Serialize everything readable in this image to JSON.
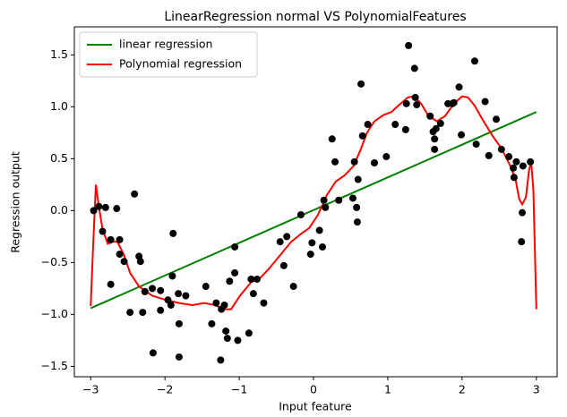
{
  "chart_data": {
    "type": "scatter",
    "title": "LinearRegression normal VS PolynomialFeatures",
    "x_label": "Input feature",
    "y_label": "Regression output",
    "xlim": [
      -3.22,
      3.28
    ],
    "ylim": [
      -1.6,
      1.77
    ],
    "xticks": [
      {
        "value": -3,
        "label": "−3"
      },
      {
        "value": -2,
        "label": "−2"
      },
      {
        "value": -1,
        "label": "−1"
      },
      0,
      1,
      2,
      3
    ],
    "yticks": [
      {
        "value": -1.5,
        "label": "−1.5"
      },
      {
        "value": -1.0,
        "label": "−1.0"
      },
      {
        "value": -0.5,
        "label": "−0.5"
      },
      {
        "value": 0.0,
        "label": "0.0"
      },
      0.5,
      {
        "value": 1.0,
        "label": "1.0"
      },
      1.5
    ],
    "legend": "upper left",
    "series": [
      {
        "name": "linear regression",
        "color": "#008000",
        "type": "line",
        "x": [
          -3,
          3
        ],
        "values": [
          -0.94,
          0.95
        ]
      },
      {
        "name": "Polynomial regression",
        "color": "#ff0000",
        "type": "line",
        "x": [
          -3.0,
          -2.97,
          -2.93,
          -2.89,
          -2.84,
          -2.77,
          -2.7,
          -2.64,
          -2.55,
          -2.47,
          -2.35,
          -2.17,
          -1.99,
          -1.81,
          -1.63,
          -1.47,
          -1.33,
          -1.2,
          -1.11,
          -0.99,
          -0.84,
          -0.72,
          -0.6,
          -0.45,
          -0.3,
          -0.18,
          -0.06,
          0.06,
          0.18,
          0.3,
          0.42,
          0.54,
          0.63,
          0.72,
          0.82,
          0.94,
          1.05,
          1.14,
          1.27,
          1.35,
          1.45,
          1.54,
          1.66,
          1.77,
          1.89,
          2.0,
          2.08,
          2.17,
          2.29,
          2.41,
          2.53,
          2.65,
          2.72,
          2.77,
          2.81,
          2.86,
          2.9,
          2.93,
          2.96,
          3.0
        ],
        "values": [
          -0.92,
          -0.39,
          0.25,
          0.04,
          -0.18,
          -0.32,
          -0.3,
          -0.3,
          -0.43,
          -0.6,
          -0.73,
          -0.82,
          -0.86,
          -0.89,
          -0.91,
          -0.89,
          -0.91,
          -0.95,
          -0.95,
          -0.82,
          -0.69,
          -0.65,
          -0.56,
          -0.43,
          -0.3,
          -0.23,
          -0.17,
          -0.04,
          0.15,
          0.28,
          0.34,
          0.43,
          0.58,
          0.75,
          0.86,
          0.92,
          0.95,
          1.01,
          1.09,
          1.1,
          1.03,
          0.92,
          0.86,
          0.91,
          1.03,
          1.1,
          1.09,
          1.01,
          0.86,
          0.72,
          0.6,
          0.43,
          0.3,
          0.11,
          0.06,
          0.13,
          0.38,
          0.48,
          0.2,
          -0.95
        ]
      },
      {
        "color": "#000000",
        "type": "scatter",
        "x": [
          -2.96,
          -2.89,
          -2.8,
          -2.84,
          -2.73,
          -2.65,
          -2.61,
          -2.61,
          -2.55,
          -2.73,
          -2.41,
          -2.47,
          -2.35,
          -2.33,
          -2.3,
          -2.27,
          -2.17,
          -2.06,
          -2.16,
          -2.06,
          -1.96,
          -1.92,
          -1.9,
          -1.89,
          -1.82,
          -1.81,
          -1.81,
          -1.72,
          -1.45,
          -1.37,
          -1.31,
          -1.25,
          -1.24,
          -1.2,
          -1.18,
          -1.16,
          -1.13,
          -1.06,
          -1.06,
          -1.02,
          -0.87,
          -0.84,
          -0.81,
          -0.76,
          -0.67,
          -0.45,
          -0.4,
          -0.36,
          -0.27,
          -0.17,
          -0.04,
          -0.02,
          0.08,
          0.12,
          0.14,
          0.16,
          0.25,
          0.29,
          0.34,
          0.53,
          0.55,
          0.58,
          0.59,
          0.6,
          0.64,
          0.66,
          0.73,
          0.82,
          0.98,
          1.1,
          1.24,
          1.25,
          1.28,
          1.36,
          1.37,
          1.39,
          1.57,
          1.61,
          1.63,
          1.63,
          1.65,
          1.71,
          1.81,
          1.87,
          1.89,
          1.96,
          1.99,
          2.17,
          2.19,
          2.31,
          2.36,
          2.46,
          2.53,
          2.63,
          2.69,
          2.7,
          2.73,
          2.81,
          2.8,
          2.82,
          2.92
        ],
        "values": [
          0.0,
          0.04,
          0.03,
          -0.2,
          -0.28,
          0.02,
          -0.28,
          -0.42,
          -0.49,
          -0.71,
          0.16,
          -0.98,
          -0.44,
          -0.49,
          -0.98,
          -0.78,
          -0.75,
          -0.77,
          -1.37,
          -0.96,
          -0.86,
          -0.91,
          -0.63,
          -0.22,
          -0.8,
          -1.09,
          -1.41,
          -0.82,
          -0.73,
          -1.09,
          -0.89,
          -1.44,
          -0.95,
          -0.91,
          -1.16,
          -1.23,
          -0.68,
          -0.35,
          -0.6,
          -1.25,
          -1.18,
          -0.66,
          -0.8,
          -0.66,
          -0.89,
          -0.3,
          -0.53,
          -0.25,
          -0.73,
          -0.04,
          -0.42,
          -0.31,
          -0.19,
          -0.35,
          0.1,
          0.03,
          0.69,
          0.47,
          0.1,
          0.12,
          0.47,
          0.03,
          -0.11,
          0.3,
          1.22,
          0.72,
          0.83,
          0.46,
          0.52,
          0.83,
          0.78,
          1.03,
          1.59,
          1.37,
          1.09,
          1.02,
          0.91,
          0.76,
          0.59,
          0.69,
          0.79,
          0.84,
          1.03,
          1.03,
          1.04,
          1.19,
          0.73,
          1.44,
          0.64,
          1.05,
          0.53,
          0.88,
          0.59,
          0.52,
          0.41,
          0.32,
          0.47,
          -0.02,
          -0.3,
          0.43,
          0.47
        ]
      }
    ]
  }
}
